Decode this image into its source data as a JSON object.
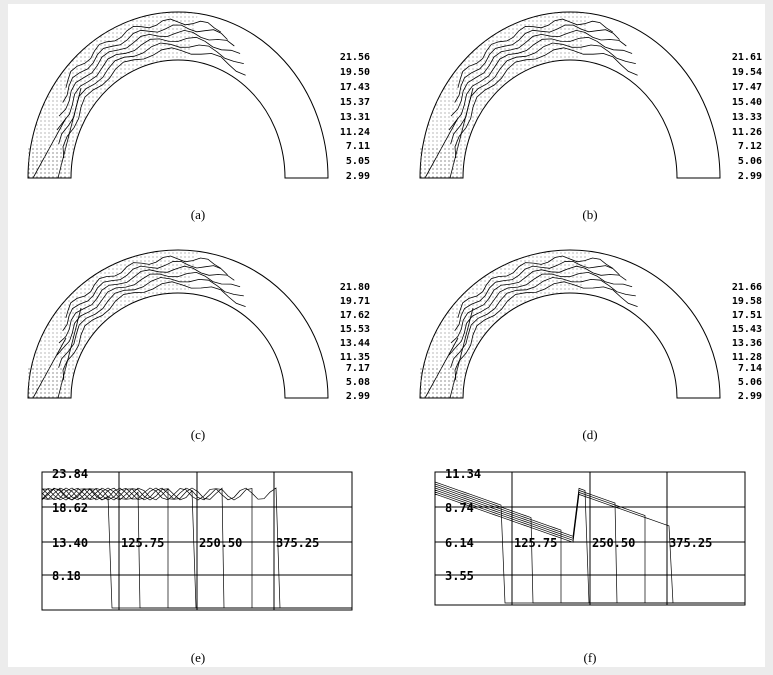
{
  "panels": [
    {
      "caption": "(a)",
      "labels": [
        "21.56",
        "19.50",
        "17.43",
        "15.37",
        "13.31",
        "11.24",
        "7.11",
        "5.05",
        "2.99"
      ]
    },
    {
      "caption": "(b)",
      "labels": [
        "21.61",
        "19.54",
        "17.47",
        "15.40",
        "13.33",
        "11.26",
        "7.12",
        "5.06",
        "2.99"
      ]
    },
    {
      "caption": "(c)",
      "labels": [
        "21.80",
        "19.71",
        "17.62",
        "15.53",
        "13.44",
        "11.35",
        "7.17",
        "5.08",
        "2.99"
      ]
    },
    {
      "caption": "(d)",
      "labels": [
        "21.66",
        "19.58",
        "17.51",
        "15.43",
        "13.36",
        "11.28",
        "7.14",
        "5.06",
        "2.99"
      ]
    }
  ],
  "plots": [
    {
      "caption": "(e)",
      "y_labels": [
        "23.84",
        "18.62",
        "13.40",
        "8.18"
      ],
      "x_labels": [
        "125.75",
        "250.50",
        "375.25"
      ]
    },
    {
      "caption": "(f)",
      "y_labels": [
        "11.34",
        "8.74",
        "6.14",
        "3.55"
      ],
      "x_labels": [
        "125.75",
        "250.50",
        "375.25"
      ]
    }
  ]
}
